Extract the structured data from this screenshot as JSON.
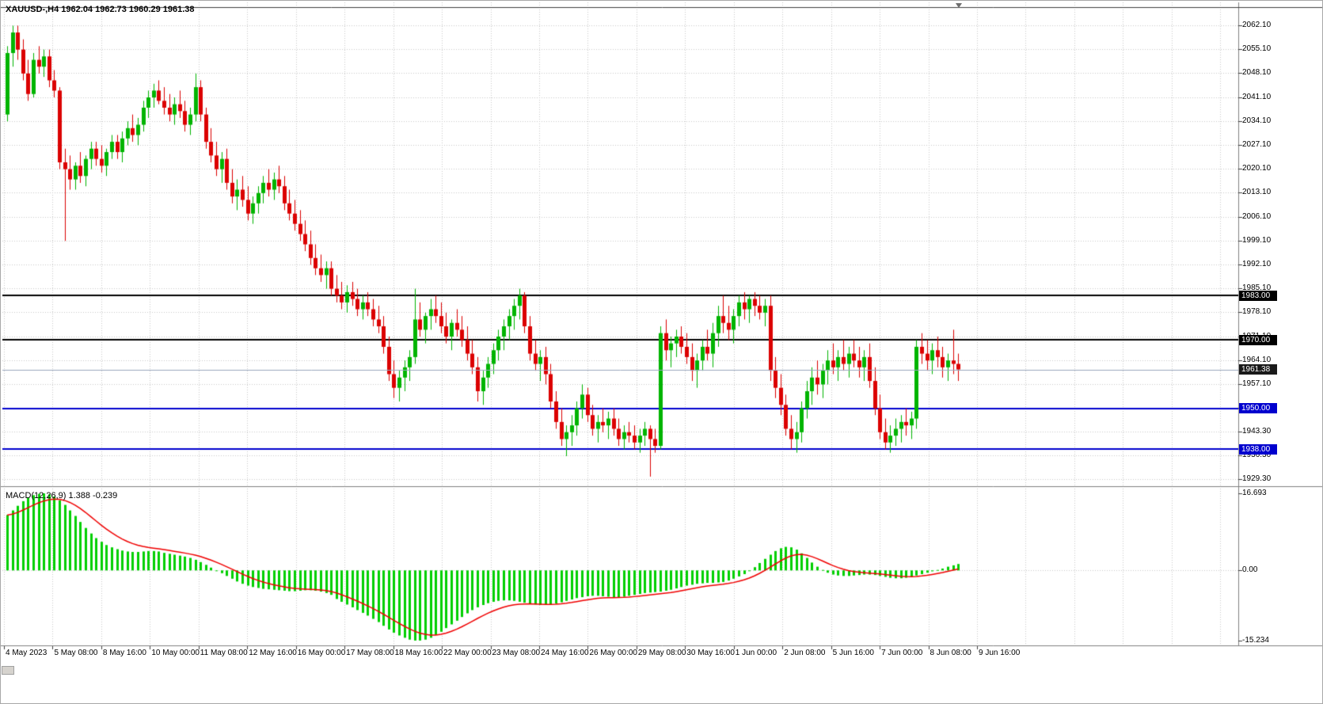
{
  "header": {
    "symbol_ohlc": "XAUUSD-,H4 1962.04 1962.73 1960.29 1961.38",
    "symbol": "XAUUSD-",
    "timeframe": "H4",
    "open": "1962.04",
    "high": "1962.73",
    "low": "1960.29",
    "close": "1961.38"
  },
  "macd_panel": {
    "label": "MACD(12,26,9) 1.388 -0.239",
    "axis_labels": [
      "16.693",
      "0.00",
      "-15.234"
    ]
  },
  "price_badges": [
    {
      "label": "1983.00",
      "price": 1983.0,
      "bg": "#000000"
    },
    {
      "label": "1970.00",
      "price": 1970.0,
      "bg": "#000000"
    },
    {
      "label": "1961.38",
      "price": 1961.38,
      "bg": "#1a1a1a"
    },
    {
      "label": "1950.00",
      "price": 1950.0,
      "bg": "#0000ce"
    },
    {
      "label": "1938.00",
      "price": 1938.0,
      "bg": "#0000ce"
    }
  ],
  "colors": {
    "background": "#ffffff",
    "grid": "#c9c9c9",
    "bull": "#00b400",
    "bear": "#db0000",
    "macd_histogram": "#00cf00",
    "macd_signal": "#f00000",
    "axis_text": "#000000",
    "frame": "#808080",
    "current_line": "#9aa8be"
  },
  "chart_data": {
    "type": "candlestick",
    "title": "XAUUSD-,H4",
    "x_axis_labels": [
      "4 May 2023",
      "5 May 08:00",
      "8 May 16:00",
      "10 May 00:00",
      "11 May 08:00",
      "12 May 16:00",
      "16 May 00:00",
      "17 May 08:00",
      "18 May 16:00",
      "22 May 00:00",
      "23 May 08:00",
      "24 May 16:00",
      "26 May 00:00",
      "29 May 08:00",
      "30 May 16:00",
      "1 Jun 00:00",
      "2 Jun 08:00",
      "5 Jun 16:00",
      "7 Jun 00:00",
      "8 Jun 08:00",
      "9 Jun 16:00"
    ],
    "y_axis_ticks": [
      "2062.10",
      "2055.10",
      "2048.10",
      "2041.10",
      "2034.10",
      "2027.10",
      "2020.10",
      "2013.10",
      "2006.10",
      "1999.10",
      "1992.10",
      "1985.10",
      "1978.10",
      "1971.10",
      "1964.10",
      "1957.10",
      "1950.10",
      "1943.30",
      "1936.30",
      "1929.30"
    ],
    "price_range": [
      1929.3,
      2062.1
    ],
    "horizontal_lines": [
      {
        "price": 1983.0,
        "color": "#000000",
        "width": 2
      },
      {
        "price": 1970.0,
        "color": "#000000",
        "width": 2
      },
      {
        "price": 1950.0,
        "color": "#0000ce",
        "width": 2
      },
      {
        "price": 1938.0,
        "color": "#0000ce",
        "width": 2
      }
    ],
    "current_price_line": {
      "price": 1961.38,
      "color": "#9aa8be",
      "width": 1
    },
    "candles_ohlc": [
      [
        2036,
        2056,
        2034,
        2054
      ],
      [
        2054,
        2062,
        2050,
        2060
      ],
      [
        2060,
        2062,
        2052,
        2055
      ],
      [
        2055,
        2058,
        2046,
        2048
      ],
      [
        2048,
        2052,
        2040,
        2042
      ],
      [
        2042,
        2054,
        2041,
        2052
      ],
      [
        2052,
        2056,
        2048,
        2050
      ],
      [
        2050,
        2055,
        2047,
        2053
      ],
      [
        2053,
        2055,
        2044,
        2046
      ],
      [
        2046,
        2049,
        2041,
        2043
      ],
      [
        2043,
        2044,
        2020,
        2022
      ],
      [
        2022,
        2026,
        1999,
        2020
      ],
      [
        2020,
        2024,
        2014,
        2017
      ],
      [
        2017,
        2022,
        2014,
        2021
      ],
      [
        2021,
        2025,
        2016,
        2018
      ],
      [
        2018,
        2024,
        2015,
        2023
      ],
      [
        2023,
        2028,
        2020,
        2026
      ],
      [
        2026,
        2028,
        2021,
        2023
      ],
      [
        2023,
        2027,
        2019,
        2021
      ],
      [
        2021,
        2026,
        2018,
        2025
      ],
      [
        2025,
        2030,
        2023,
        2028
      ],
      [
        2028,
        2030,
        2023,
        2025
      ],
      [
        2025,
        2031,
        2022,
        2029
      ],
      [
        2029,
        2034,
        2027,
        2032
      ],
      [
        2032,
        2036,
        2028,
        2030
      ],
      [
        2030,
        2035,
        2027,
        2033
      ],
      [
        2033,
        2040,
        2031,
        2038
      ],
      [
        2038,
        2043,
        2035,
        2041
      ],
      [
        2041,
        2045,
        2038,
        2043
      ],
      [
        2043,
        2046,
        2039,
        2040
      ],
      [
        2040,
        2044,
        2036,
        2038
      ],
      [
        2038,
        2042,
        2034,
        2036
      ],
      [
        2036,
        2041,
        2033,
        2039
      ],
      [
        2039,
        2043,
        2035,
        2037
      ],
      [
        2037,
        2040,
        2031,
        2033
      ],
      [
        2033,
        2038,
        2030,
        2036
      ],
      [
        2036,
        2048,
        2034,
        2044
      ],
      [
        2044,
        2046,
        2034,
        2036
      ],
      [
        2036,
        2038,
        2026,
        2028
      ],
      [
        2028,
        2032,
        2022,
        2024
      ],
      [
        2024,
        2028,
        2018,
        2020
      ],
      [
        2020,
        2025,
        2016,
        2023
      ],
      [
        2023,
        2026,
        2014,
        2016
      ],
      [
        2016,
        2020,
        2010,
        2012
      ],
      [
        2012,
        2017,
        2008,
        2014
      ],
      [
        2014,
        2018,
        2009,
        2011
      ],
      [
        2011,
        2015,
        2005,
        2007
      ],
      [
        2007,
        2012,
        2004,
        2010
      ],
      [
        2010,
        2015,
        2007,
        2013
      ],
      [
        2013,
        2018,
        2010,
        2016
      ],
      [
        2016,
        2020,
        2012,
        2014
      ],
      [
        2014,
        2019,
        2011,
        2017
      ],
      [
        2017,
        2021,
        2013,
        2015
      ],
      [
        2015,
        2018,
        2008,
        2010
      ],
      [
        2010,
        2014,
        2005,
        2007
      ],
      [
        2007,
        2011,
        2002,
        2004
      ],
      [
        2004,
        2008,
        1999,
        2001
      ],
      [
        2001,
        2005,
        1996,
        1998
      ],
      [
        1998,
        2002,
        1992,
        1994
      ],
      [
        1994,
        1998,
        1989,
        1991
      ],
      [
        1991,
        1995,
        1987,
        1989
      ],
      [
        1989,
        1993,
        1985,
        1991
      ],
      [
        1991,
        1993,
        1983,
        1985
      ],
      [
        1985,
        1989,
        1981,
        1983
      ],
      [
        1983,
        1987,
        1979,
        1981
      ],
      [
        1981,
        1986,
        1978,
        1984
      ],
      [
        1984,
        1987,
        1980,
        1982
      ],
      [
        1982,
        1985,
        1977,
        1979
      ],
      [
        1979,
        1983,
        1976,
        1981
      ],
      [
        1981,
        1984,
        1977,
        1979
      ],
      [
        1979,
        1982,
        1974,
        1976
      ],
      [
        1976,
        1980,
        1972,
        1974
      ],
      [
        1974,
        1977,
        1966,
        1968
      ],
      [
        1968,
        1971,
        1958,
        1960
      ],
      [
        1960,
        1964,
        1953,
        1956
      ],
      [
        1956,
        1961,
        1952,
        1959
      ],
      [
        1959,
        1964,
        1955,
        1962
      ],
      [
        1962,
        1967,
        1958,
        1965
      ],
      [
        1965,
        1985,
        1963,
        1976
      ],
      [
        1976,
        1981,
        1971,
        1973
      ],
      [
        1973,
        1978,
        1969,
        1977
      ],
      [
        1977,
        1982,
        1973,
        1979
      ],
      [
        1979,
        1983,
        1975,
        1977
      ],
      [
        1977,
        1981,
        1972,
        1974
      ],
      [
        1974,
        1978,
        1969,
        1971
      ],
      [
        1971,
        1976,
        1967,
        1975
      ],
      [
        1975,
        1979,
        1971,
        1973
      ],
      [
        1973,
        1977,
        1968,
        1970
      ],
      [
        1970,
        1974,
        1964,
        1966
      ],
      [
        1966,
        1970,
        1960,
        1962
      ],
      [
        1962,
        1965,
        1952,
        1955
      ],
      [
        1955,
        1961,
        1951,
        1959
      ],
      [
        1959,
        1965,
        1956,
        1963
      ],
      [
        1963,
        1969,
        1960,
        1967
      ],
      [
        1967,
        1973,
        1964,
        1971
      ],
      [
        1971,
        1976,
        1967,
        1974
      ],
      [
        1974,
        1979,
        1970,
        1977
      ],
      [
        1977,
        1982,
        1973,
        1980
      ],
      [
        1980,
        1985,
        1976,
        1983
      ],
      [
        1983,
        1984,
        1972,
        1974
      ],
      [
        1974,
        1977,
        1964,
        1966
      ],
      [
        1966,
        1970,
        1961,
        1963
      ],
      [
        1963,
        1967,
        1958,
        1965
      ],
      [
        1965,
        1968,
        1957,
        1960
      ],
      [
        1960,
        1963,
        1950,
        1952
      ],
      [
        1952,
        1955,
        1944,
        1946
      ],
      [
        1946,
        1950,
        1939,
        1941
      ],
      [
        1941,
        1945,
        1936,
        1943
      ],
      [
        1943,
        1948,
        1939,
        1945
      ],
      [
        1945,
        1952,
        1942,
        1950
      ],
      [
        1950,
        1957,
        1947,
        1954
      ],
      [
        1954,
        1956,
        1946,
        1948
      ],
      [
        1948,
        1951,
        1942,
        1944
      ],
      [
        1944,
        1948,
        1940,
        1946
      ],
      [
        1946,
        1950,
        1943,
        1945
      ],
      [
        1945,
        1949,
        1941,
        1947
      ],
      [
        1947,
        1950,
        1942,
        1944
      ],
      [
        1944,
        1947,
        1939,
        1941
      ],
      [
        1941,
        1945,
        1938,
        1943
      ],
      [
        1943,
        1946,
        1940,
        1942
      ],
      [
        1942,
        1945,
        1938,
        1940
      ],
      [
        1940,
        1944,
        1937,
        1942
      ],
      [
        1942,
        1946,
        1939,
        1944
      ],
      [
        1944,
        1945,
        1930,
        1941
      ],
      [
        1941,
        1944,
        1937,
        1939
      ],
      [
        1939,
        1974,
        1938,
        1972
      ],
      [
        1972,
        1976,
        1964,
        1967
      ],
      [
        1967,
        1971,
        1962,
        1969
      ],
      [
        1969,
        1973,
        1965,
        1971
      ],
      [
        1971,
        1974,
        1966,
        1968
      ],
      [
        1968,
        1972,
        1963,
        1965
      ],
      [
        1965,
        1969,
        1958,
        1961
      ],
      [
        1961,
        1966,
        1956,
        1964
      ],
      [
        1964,
        1970,
        1961,
        1968
      ],
      [
        1968,
        1973,
        1964,
        1966
      ],
      [
        1966,
        1975,
        1962,
        1972
      ],
      [
        1972,
        1980,
        1968,
        1977
      ],
      [
        1977,
        1983,
        1972,
        1975
      ],
      [
        1975,
        1980,
        1970,
        1973
      ],
      [
        1973,
        1979,
        1969,
        1977
      ],
      [
        1977,
        1983,
        1974,
        1981
      ],
      [
        1981,
        1984,
        1976,
        1979
      ],
      [
        1979,
        1983,
        1975,
        1982
      ],
      [
        1982,
        1984,
        1977,
        1980
      ],
      [
        1980,
        1983,
        1976,
        1978
      ],
      [
        1978,
        1982,
        1974,
        1980
      ],
      [
        1980,
        1983,
        1958,
        1961
      ],
      [
        1961,
        1965,
        1953,
        1956
      ],
      [
        1956,
        1960,
        1948,
        1951
      ],
      [
        1951,
        1954,
        1942,
        1944
      ],
      [
        1944,
        1948,
        1938,
        1941
      ],
      [
        1941,
        1946,
        1937,
        1943
      ],
      [
        1943,
        1952,
        1940,
        1950
      ],
      [
        1950,
        1958,
        1947,
        1955
      ],
      [
        1955,
        1962,
        1951,
        1959
      ],
      [
        1959,
        1964,
        1954,
        1957
      ],
      [
        1957,
        1963,
        1953,
        1961
      ],
      [
        1961,
        1967,
        1957,
        1964
      ],
      [
        1964,
        1969,
        1960,
        1962
      ],
      [
        1962,
        1967,
        1958,
        1965
      ],
      [
        1965,
        1970,
        1961,
        1963
      ],
      [
        1963,
        1968,
        1959,
        1966
      ],
      [
        1966,
        1970,
        1962,
        1964
      ],
      [
        1964,
        1968,
        1959,
        1962
      ],
      [
        1962,
        1967,
        1958,
        1965
      ],
      [
        1965,
        1969,
        1956,
        1958
      ],
      [
        1958,
        1962,
        1948,
        1950
      ],
      [
        1950,
        1954,
        1941,
        1943
      ],
      [
        1943,
        1947,
        1938,
        1940
      ],
      [
        1940,
        1945,
        1937,
        1942
      ],
      [
        1942,
        1947,
        1939,
        1944
      ],
      [
        1944,
        1948,
        1940,
        1946
      ],
      [
        1946,
        1950,
        1942,
        1945
      ],
      [
        1945,
        1949,
        1941,
        1947
      ],
      [
        1947,
        1970,
        1944,
        1968
      ],
      [
        1968,
        1972,
        1963,
        1966
      ],
      [
        1966,
        1970,
        1961,
        1964
      ],
      [
        1964,
        1969,
        1960,
        1967
      ],
      [
        1967,
        1971,
        1962,
        1965
      ],
      [
        1965,
        1968,
        1959,
        1962
      ],
      [
        1962,
        1966,
        1958,
        1964
      ],
      [
        1964,
        1973,
        1960,
        1963
      ],
      [
        1963,
        1966,
        1958,
        1961.38
      ]
    ],
    "indicator": {
      "name": "MACD",
      "params": [
        12,
        26,
        9
      ],
      "display_values": {
        "macd": 1.388,
        "signal": -0.239
      },
      "y_axis": {
        "max": 16.693,
        "zero": 0.0,
        "min": -15.234
      },
      "histogram": [
        12.0,
        13.0,
        14.0,
        15.0,
        15.8,
        16.3,
        16.6,
        16.7,
        16.5,
        16.0,
        15.2,
        14.2,
        13.0,
        11.8,
        10.5,
        9.2,
        8.0,
        7.0,
        6.2,
        5.5,
        5.0,
        4.6,
        4.3,
        4.1,
        4.0,
        4.0,
        4.1,
        4.2,
        4.2,
        4.1,
        3.8,
        3.6,
        3.4,
        3.2,
        3.0,
        2.7,
        2.3,
        1.8,
        1.2,
        0.6,
        0.0,
        -0.6,
        -1.2,
        -1.8,
        -2.4,
        -2.9,
        -3.3,
        -3.6,
        -3.8,
        -4.0,
        -4.1,
        -4.2,
        -4.3,
        -4.4,
        -4.5,
        -4.5,
        -4.4,
        -4.3,
        -4.3,
        -4.4,
        -4.6,
        -4.9,
        -5.3,
        -6.2,
        -6.8,
        -7.4,
        -8.0,
        -8.6,
        -9.2,
        -9.8,
        -10.5,
        -11.2,
        -12.0,
        -12.8,
        -13.5,
        -14.1,
        -14.6,
        -15.0,
        -15.2,
        -15.2,
        -15.0,
        -14.6,
        -14.0,
        -13.3,
        -12.5,
        -11.7,
        -10.9,
        -10.1,
        -9.3,
        -8.6,
        -8.0,
        -7.5,
        -7.1,
        -6.8,
        -6.6,
        -6.5,
        -6.5,
        -6.6,
        -6.8,
        -7.0,
        -7.2,
        -7.4,
        -7.5,
        -7.5,
        -7.4,
        -7.2,
        -6.9,
        -6.6,
        -6.3,
        -6.0,
        -5.8,
        -5.6,
        -5.5,
        -5.5,
        -5.6,
        -5.7,
        -5.8,
        -5.8,
        -5.7,
        -5.5,
        -5.3,
        -5.1,
        -4.9,
        -4.8,
        -4.7,
        -4.6,
        -4.4,
        -4.2,
        -3.9,
        -3.6,
        -3.3,
        -3.1,
        -2.9,
        -2.8,
        -2.7,
        -2.7,
        -2.6,
        -2.5,
        -2.2,
        -1.8,
        -1.3,
        -0.8,
        -0.1,
        0.7,
        1.6,
        2.5,
        3.4,
        4.2,
        4.8,
        5.1,
        5.0,
        4.5,
        3.7,
        2.7,
        1.7,
        0.8,
        0.1,
        -0.5,
        -0.9,
        -1.1,
        -1.2,
        -1.2,
        -1.1,
        -1.0,
        -0.9,
        -0.9,
        -1.0,
        -1.2,
        -1.4,
        -1.6,
        -1.7,
        -1.7,
        -1.6,
        -1.4,
        -1.1,
        -0.8,
        -0.5,
        -0.2,
        0.1,
        0.4,
        0.8,
        1.1,
        1.388
      ]
    }
  }
}
